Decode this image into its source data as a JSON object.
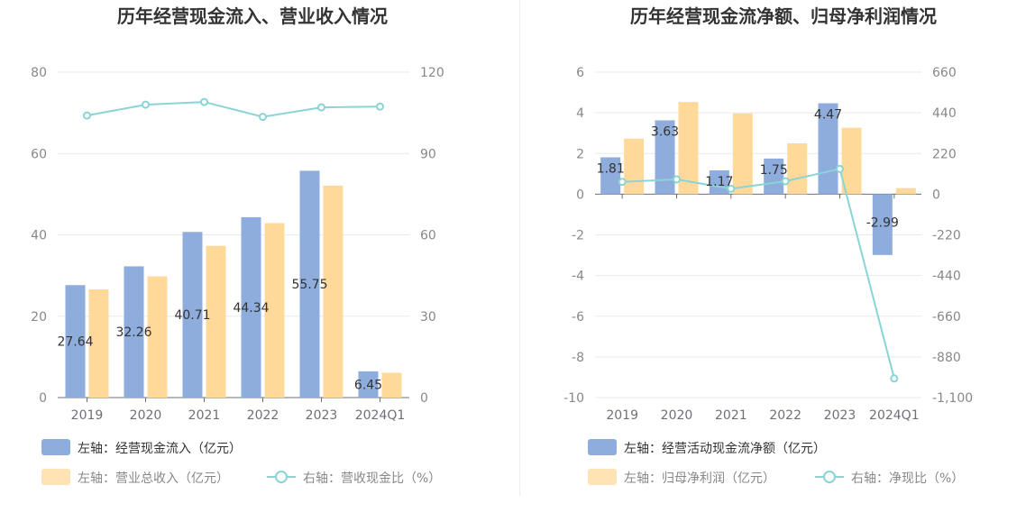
{
  "chart_data": [
    {
      "type": "bar",
      "title": "历年经营现金流入、营业收入情况",
      "categories": [
        "2019",
        "2020",
        "2021",
        "2022",
        "2023",
        "2024Q1"
      ],
      "left_axis": {
        "ylim": [
          0,
          80
        ],
        "ticks": [
          "0",
          "20",
          "40",
          "60",
          "80"
        ]
      },
      "right_axis": {
        "ylim": [
          0,
          120
        ],
        "ticks": [
          "0",
          "30",
          "60",
          "90",
          "120"
        ]
      },
      "series": [
        {
          "name": "左轴：经营现金流入（亿元）",
          "kind": "bar",
          "axis": "left",
          "color": "#8eacdc",
          "values": [
            27.64,
            32.26,
            40.71,
            44.34,
            55.75,
            6.45
          ],
          "labels": [
            "27.64",
            "32.26",
            "40.71",
            "44.34",
            "55.75",
            "6.45"
          ]
        },
        {
          "name": "左轴：营业总收入（亿元）",
          "kind": "bar",
          "axis": "left",
          "color": "#ffd99a",
          "values": [
            26.6,
            29.8,
            37.3,
            42.9,
            52.1,
            6.1
          ]
        },
        {
          "name": "右轴：营收现金比（%）",
          "kind": "line",
          "axis": "right",
          "color": "#8ad4d6",
          "values": [
            104.0,
            108.0,
            109.0,
            103.5,
            107.0,
            107.3
          ]
        }
      ],
      "grid": true,
      "legend": "bottom-left"
    },
    {
      "type": "bar",
      "title": "历年经营现金流净额、归母净利润情况",
      "categories": [
        "2019",
        "2020",
        "2021",
        "2022",
        "2023",
        "2024Q1"
      ],
      "left_axis": {
        "ylim": [
          -10,
          6
        ],
        "ticks": [
          "-10",
          "-8",
          "-6",
          "-4",
          "-2",
          "0",
          "2",
          "4",
          "6"
        ]
      },
      "right_axis": {
        "ylim": [
          -1100,
          660
        ],
        "ticks": [
          "-1,100",
          "-880",
          "-660",
          "-440",
          "-220",
          "0",
          "220",
          "440",
          "660"
        ]
      },
      "series": [
        {
          "name": "左轴：经营活动现金流净额（亿元）",
          "kind": "bar",
          "axis": "left",
          "color": "#8eacdc",
          "values": [
            1.81,
            3.63,
            1.17,
            1.75,
            4.47,
            -2.99
          ],
          "labels": [
            "1.81",
            "3.63",
            "1.17",
            "1.75",
            "4.47",
            "-2.99"
          ]
        },
        {
          "name": "左轴：归母净利润（亿元）",
          "kind": "bar",
          "axis": "left",
          "color": "#ffd99a",
          "values": [
            2.73,
            4.53,
            3.97,
            2.5,
            3.27,
            0.3
          ]
        },
        {
          "name": "右轴：净现比（%）",
          "kind": "line",
          "axis": "right",
          "color": "#8ad4d6",
          "values": [
            66.3,
            80.1,
            29.5,
            70.0,
            136.7,
            -996.7
          ]
        }
      ],
      "grid": true,
      "legend": "bottom-left"
    }
  ]
}
